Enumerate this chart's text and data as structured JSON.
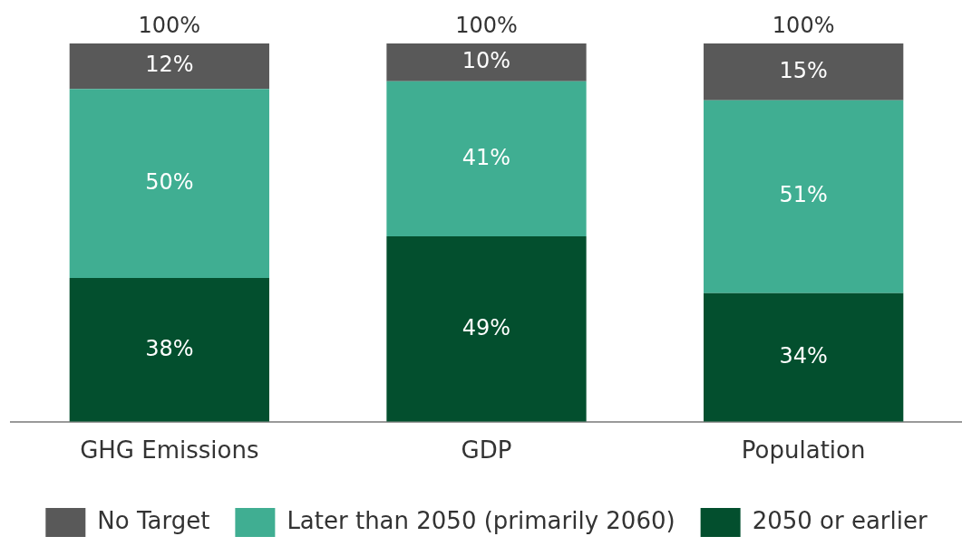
{
  "chart_data": {
    "type": "bar",
    "stacked": true,
    "categories": [
      "GHG Emissions",
      "GDP",
      "Population"
    ],
    "legend": "bottom",
    "grid": false,
    "series": [
      {
        "name": "2050 or earlier",
        "color": "#034f2e",
        "values": [
          38,
          49,
          34
        ],
        "value_labels": [
          "38%",
          "49%",
          "34%"
        ]
      },
      {
        "name": "Later than 2050 (primarily 2060)",
        "color": "#40ae92",
        "values": [
          50,
          41,
          51
        ],
        "value_labels": [
          "50%",
          "41%",
          "51%"
        ]
      },
      {
        "name": "No Target",
        "color": "#595959",
        "values": [
          12,
          10,
          15
        ],
        "value_labels": [
          "12%",
          "10%",
          "15%"
        ]
      }
    ],
    "totals": [
      "100%",
      "100%",
      "100%"
    ]
  }
}
